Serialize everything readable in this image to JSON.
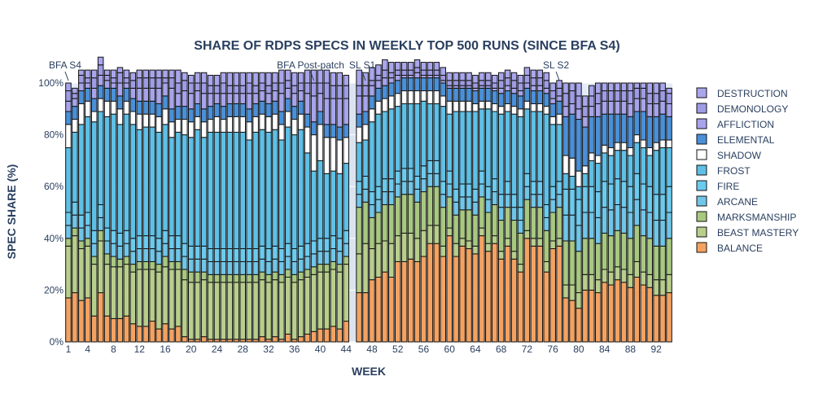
{
  "chart_data": {
    "type": "bar",
    "stacked": true,
    "title": "SHARE OF RDPS SPECS IN WEEKLY TOP 500 RUNS (SINCE BFA S4)",
    "xlabel": "WEEK",
    "ylabel": "SPEC SHARE (%)",
    "ylim": [
      0,
      100
    ],
    "y_ticks": [
      "0%",
      "20%",
      "40%",
      "60%",
      "80%",
      "100%"
    ],
    "x_ticks": [
      1,
      4,
      8,
      12,
      16,
      20,
      24,
      28,
      32,
      36,
      40,
      44,
      48,
      52,
      56,
      60,
      64,
      68,
      72,
      76,
      80,
      84,
      88,
      92
    ],
    "x_range": [
      0.5,
      94.5
    ],
    "missing_weeks": [
      45
    ],
    "shaded_gap": [
      44.5,
      46.5
    ],
    "legend_position": "right",
    "annotations": [
      {
        "text": "BFA S4",
        "week": 1
      },
      {
        "text": "BFA Post-patch",
        "week": 39
      },
      {
        "text": "SL S1",
        "week": 47
      },
      {
        "text": "SL S2",
        "week": 77
      }
    ],
    "series": [
      {
        "name": "BALANCE",
        "color": "#f4a261"
      },
      {
        "name": "BEAST MASTERY",
        "color": "#b8cf8c"
      },
      {
        "name": "MARKSMANSHIP",
        "color": "#a8c880"
      },
      {
        "name": "ARCANE",
        "color": "#70c6e8"
      },
      {
        "name": "FIRE",
        "color": "#6bcbef"
      },
      {
        "name": "FROST",
        "color": "#5ec0e6"
      },
      {
        "name": "SHADOW",
        "color": "#ffffff"
      },
      {
        "name": "ELEMENTAL",
        "color": "#4a90d9"
      },
      {
        "name": "AFFLICTION",
        "color": "#a7a4ec"
      },
      {
        "name": "DEMONOLOGY",
        "color": "#9f9ce6"
      },
      {
        "name": "DESTRUCTION",
        "color": "#a9a6ee"
      }
    ],
    "segments": {
      "weeks": [
        1,
        2,
        3,
        4,
        5,
        6,
        7,
        8,
        9,
        10,
        11,
        12,
        13,
        14,
        15,
        16,
        17,
        18,
        19,
        20,
        21,
        22,
        23,
        24,
        25,
        26,
        27,
        28,
        29,
        30,
        31,
        32,
        33,
        34,
        35,
        36,
        37,
        38,
        39,
        40,
        41,
        42,
        43,
        44,
        46,
        47,
        48,
        49,
        50,
        51,
        52,
        53,
        54,
        55,
        56,
        57,
        58,
        59,
        60,
        61,
        62,
        63,
        64,
        65,
        66,
        67,
        68,
        69,
        70,
        71,
        72,
        73,
        74,
        75,
        76,
        77,
        78,
        79,
        80,
        81,
        82,
        83,
        84,
        85,
        86,
        87,
        88,
        89,
        90,
        91,
        92,
        93,
        94
      ],
      "balance": [
        17,
        19,
        16,
        17,
        10,
        19,
        10,
        9,
        9,
        10,
        7,
        6,
        6,
        8,
        5,
        7,
        5,
        6,
        2,
        1,
        1,
        2,
        1,
        1,
        1,
        1,
        1,
        1,
        1,
        1,
        2,
        1,
        2,
        1,
        3,
        1,
        2,
        3,
        4,
        5,
        5,
        6,
        5,
        8,
        19,
        19,
        24,
        25,
        27,
        25,
        31,
        31,
        32,
        31,
        33,
        38,
        38,
        33,
        41,
        33,
        37,
        36,
        34,
        41,
        35,
        38,
        32,
        37,
        32,
        27,
        40,
        37,
        37,
        27,
        36,
        37,
        17,
        16,
        13,
        20,
        20,
        19,
        23,
        22,
        24,
        23,
        21,
        25,
        22,
        21,
        18,
        18,
        19
      ],
      "bm": [
        20,
        22,
        20,
        20,
        20,
        20,
        20,
        20,
        20,
        20,
        20,
        22,
        22,
        20,
        22,
        22,
        23,
        22,
        22,
        22,
        22,
        22,
        22,
        22,
        22,
        22,
        22,
        22,
        22,
        22,
        22,
        22,
        22,
        22,
        22,
        22,
        22,
        22,
        22,
        22,
        22,
        22,
        22,
        22,
        15,
        19,
        12,
        13,
        12,
        13,
        10,
        11,
        10,
        9,
        10,
        7,
        7,
        4,
        3,
        5,
        3,
        3,
        3,
        3,
        3,
        3,
        3,
        3,
        3,
        3,
        3,
        3,
        3,
        4,
        3,
        3,
        5,
        6,
        6,
        6,
        6,
        5,
        5,
        5,
        5,
        5,
        5,
        6,
        5,
        5,
        6,
        6,
        7
      ],
      "mm": [
        3,
        3,
        3,
        3,
        3,
        4,
        4,
        4,
        3,
        3,
        3,
        3,
        3,
        3,
        3,
        4,
        3,
        3,
        4,
        4,
        4,
        3,
        3,
        3,
        3,
        3,
        3,
        3,
        3,
        3,
        3,
        3,
        3,
        3,
        3,
        3,
        3,
        3,
        3,
        3,
        3,
        3,
        3,
        3,
        18,
        16,
        12,
        12,
        14,
        15,
        15,
        15,
        15,
        14,
        15,
        15,
        15,
        15,
        12,
        11,
        11,
        12,
        12,
        12,
        12,
        12,
        12,
        12,
        12,
        12,
        12,
        12,
        12,
        12,
        11,
        12,
        17,
        17,
        16,
        14,
        14,
        14,
        14,
        14,
        14,
        14,
        14,
        14,
        14,
        14,
        13,
        13,
        14
      ],
      "arcane": [
        5,
        5,
        5,
        5,
        5,
        5,
        5,
        5,
        5,
        5,
        5,
        5,
        5,
        5,
        5,
        5,
        5,
        5,
        5,
        5,
        5,
        5,
        5,
        5,
        5,
        5,
        5,
        5,
        5,
        5,
        5,
        5,
        5,
        5,
        5,
        5,
        5,
        5,
        5,
        5,
        5,
        5,
        5,
        5,
        5,
        5,
        5,
        5,
        5,
        5,
        5,
        5,
        5,
        5,
        5,
        5,
        5,
        5,
        5,
        5,
        5,
        5,
        5,
        5,
        5,
        5,
        5,
        5,
        5,
        5,
        5,
        5,
        5,
        5,
        5,
        5,
        10,
        10,
        10,
        10,
        10,
        10,
        10,
        10,
        10,
        10,
        10,
        10,
        10,
        10,
        10,
        10,
        10
      ],
      "fire": [
        5,
        5,
        5,
        5,
        5,
        5,
        5,
        5,
        5,
        5,
        5,
        5,
        5,
        5,
        5,
        5,
        5,
        5,
        5,
        5,
        5,
        5,
        5,
        5,
        5,
        5,
        5,
        5,
        5,
        5,
        5,
        5,
        5,
        5,
        5,
        5,
        5,
        5,
        5,
        5,
        5,
        5,
        5,
        5,
        5,
        5,
        5,
        5,
        5,
        5,
        5,
        5,
        5,
        5,
        5,
        5,
        5,
        5,
        5,
        5,
        5,
        5,
        5,
        5,
        5,
        5,
        5,
        5,
        5,
        5,
        5,
        5,
        5,
        5,
        5,
        5,
        10,
        10,
        10,
        10,
        10,
        10,
        10,
        10,
        10,
        10,
        10,
        10,
        10,
        10,
        10,
        10,
        10
      ],
      "frost": [
        25,
        27,
        35,
        37,
        42,
        36,
        43,
        45,
        42,
        45,
        44,
        41,
        42,
        42,
        41,
        41,
        38,
        40,
        42,
        42,
        45,
        42,
        45,
        45,
        45,
        45,
        45,
        45,
        42,
        45,
        45,
        45,
        45,
        42,
        45,
        44,
        45,
        35,
        27,
        30,
        25,
        25,
        25,
        26,
        15,
        14,
        27,
        28,
        26,
        27,
        25,
        25,
        25,
        28,
        25,
        22,
        22,
        29,
        22,
        30,
        28,
        28,
        30,
        24,
        30,
        26,
        31,
        27,
        31,
        35,
        25,
        27,
        27,
        35,
        24,
        22,
        6,
        5,
        5,
        5,
        10,
        11,
        11,
        11,
        11,
        12,
        12,
        12,
        14,
        12,
        17,
        18,
        15
      ],
      "shadow": [
        9,
        5,
        8,
        6,
        4,
        5,
        6,
        5,
        6,
        5,
        5,
        6,
        5,
        5,
        6,
        6,
        6,
        5,
        6,
        6,
        5,
        6,
        5,
        6,
        5,
        6,
        6,
        6,
        7,
        6,
        6,
        6,
        6,
        6,
        6,
        6,
        6,
        10,
        14,
        14,
        14,
        13,
        13,
        10,
        6,
        6,
        5,
        5,
        5,
        5,
        5,
        5,
        5,
        5,
        4,
        5,
        5,
        4,
        5,
        4,
        4,
        4,
        3,
        3,
        3,
        3,
        3,
        3,
        3,
        3,
        3,
        3,
        3,
        3,
        3,
        4,
        7,
        7,
        6,
        3,
        3,
        3,
        3,
        3,
        3,
        3,
        3,
        3,
        3,
        3,
        3,
        3,
        3
      ],
      "elemental": [
        5,
        5,
        5,
        5,
        5,
        5,
        5,
        5,
        5,
        5,
        5,
        5,
        5,
        5,
        5,
        5,
        5,
        5,
        5,
        5,
        5,
        5,
        5,
        5,
        5,
        5,
        5,
        5,
        5,
        5,
        5,
        5,
        5,
        5,
        5,
        5,
        5,
        5,
        5,
        5,
        5,
        5,
        5,
        5,
        5,
        5,
        5,
        5,
        5,
        5,
        5,
        5,
        5,
        5,
        5,
        5,
        5,
        5,
        5,
        5,
        5,
        5,
        5,
        5,
        5,
        5,
        5,
        5,
        5,
        5,
        5,
        5,
        5,
        5,
        5,
        5,
        15,
        17,
        20,
        15,
        14,
        15,
        12,
        13,
        11,
        11,
        12,
        9,
        11,
        12,
        10,
        10,
        9
      ],
      "affliction": [
        4,
        3,
        3,
        2,
        4,
        4,
        3,
        2,
        5,
        2,
        4,
        5,
        5,
        5,
        6,
        5,
        8,
        5,
        6,
        6,
        5,
        6,
        5,
        4,
        5,
        4,
        4,
        4,
        6,
        4,
        4,
        4,
        4,
        7,
        4,
        5,
        4,
        8,
        10,
        7,
        10,
        10,
        11,
        10,
        7,
        6,
        4,
        3,
        3,
        2,
        2,
        1,
        1,
        2,
        1,
        1,
        1,
        1,
        1,
        1,
        1,
        1,
        1,
        1,
        1,
        1,
        2,
        2,
        2,
        2,
        2,
        2,
        2,
        2,
        2,
        2,
        4,
        4,
        4,
        4,
        4,
        5,
        5,
        5,
        5,
        5,
        5,
        5,
        5,
        5,
        5,
        5,
        5
      ],
      "demonology": [
        4,
        2,
        3,
        2,
        4,
        4,
        2,
        2,
        4,
        2,
        3,
        4,
        4,
        4,
        4,
        2,
        4,
        4,
        4,
        4,
        3,
        4,
        3,
        3,
        4,
        3,
        3,
        3,
        4,
        3,
        3,
        3,
        3,
        4,
        3,
        3,
        3,
        4,
        5,
        4,
        6,
        5,
        5,
        5,
        4,
        4,
        2,
        2,
        3,
        2,
        2,
        2,
        2,
        2,
        2,
        2,
        2,
        2,
        2,
        2,
        2,
        2,
        2,
        2,
        2,
        2,
        3,
        3,
        3,
        3,
        3,
        3,
        3,
        3,
        3,
        3,
        5,
        5,
        5,
        4,
        4,
        4,
        4,
        4,
        4,
        4,
        5,
        4,
        4,
        4,
        4,
        4,
        4
      ],
      "destruction": [
        3,
        2,
        2,
        3,
        3,
        3,
        2,
        3,
        2,
        3,
        3,
        3,
        3,
        3,
        3,
        3,
        3,
        5,
        3,
        3,
        4,
        4,
        4,
        4,
        4,
        5,
        5,
        5,
        4,
        5,
        4,
        5,
        4,
        5,
        4,
        5,
        4,
        5,
        5,
        5,
        5,
        5,
        5,
        4,
        6,
        5,
        5,
        4,
        4,
        4,
        3,
        3,
        3,
        3,
        3,
        3,
        3,
        3,
        3,
        3,
        3,
        3,
        3,
        3,
        3,
        3,
        3,
        3,
        3,
        3,
        3,
        3,
        3,
        3,
        3,
        3,
        4,
        3,
        5,
        4,
        4,
        4,
        3,
        3,
        3,
        3,
        3,
        2,
        2,
        4,
        4,
        3,
        2
      ]
    }
  }
}
